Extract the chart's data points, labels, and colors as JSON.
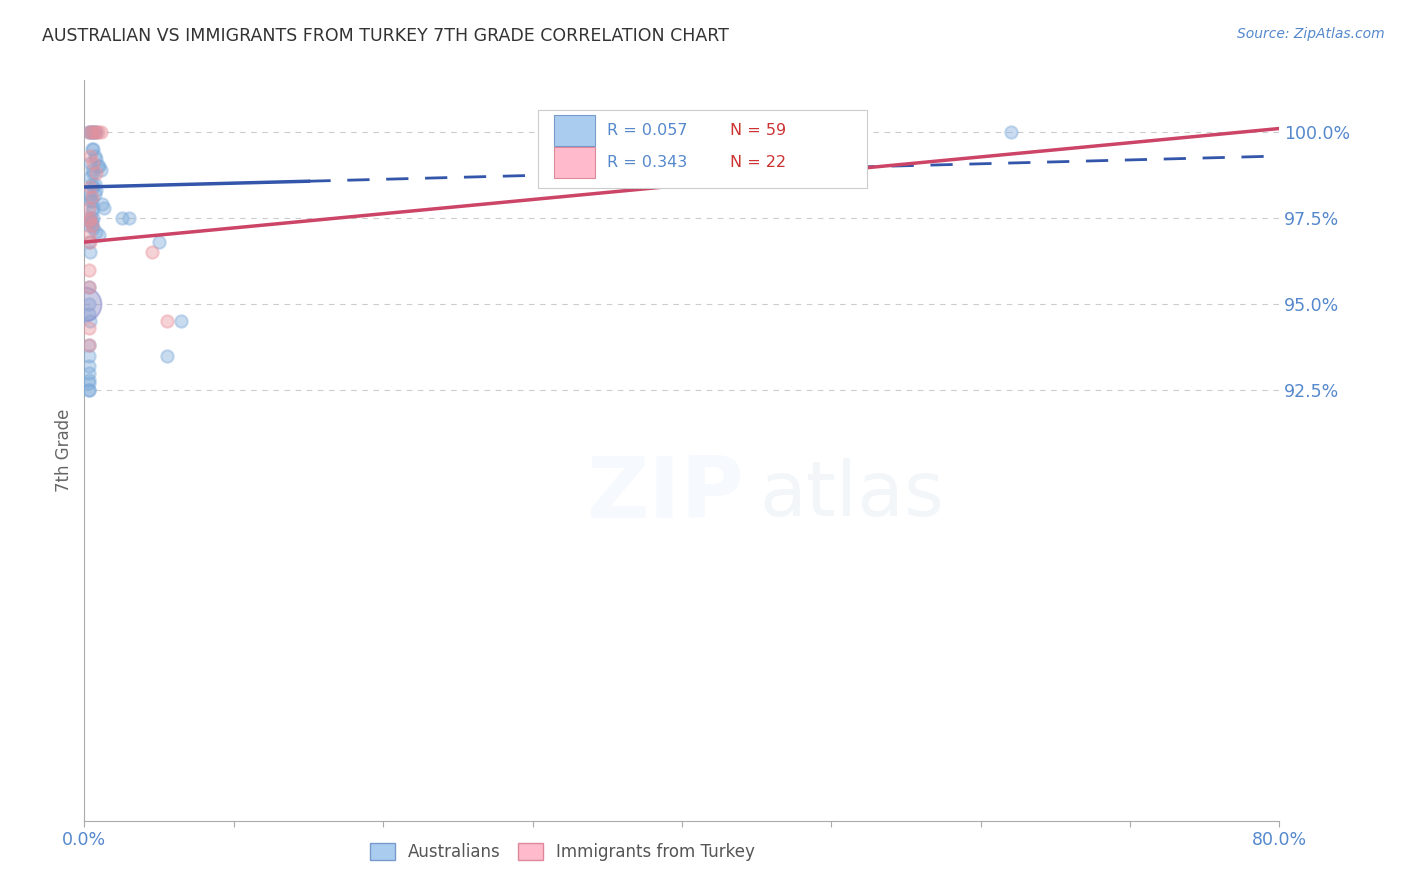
{
  "title": "AUSTRALIAN VS IMMIGRANTS FROM TURKEY 7TH GRADE CORRELATION CHART",
  "source": "Source: ZipAtlas.com",
  "ylabel": "7th Grade",
  "xmin": 0.0,
  "xmax": 80.0,
  "ymin": 80.0,
  "ymax": 101.5,
  "ytick_values": [
    92.5,
    95.0,
    97.5,
    100.0
  ],
  "yticklabels": [
    "92.5%",
    "95.0%",
    "97.5%",
    "100.0%"
  ],
  "blue_R": 0.057,
  "blue_N": 59,
  "pink_R": 0.343,
  "pink_N": 22,
  "legend_label_blue": "Australians",
  "legend_label_pink": "Immigrants from Turkey",
  "blue_color": "#7aa8d8",
  "pink_color": "#e8909a",
  "blue_line_color": "#3355aa",
  "pink_line_color": "#cc4466",
  "blue_scatter_x": [
    0.3,
    0.4,
    0.5,
    0.6,
    0.7,
    0.8,
    0.5,
    0.6,
    0.7,
    0.8,
    0.9,
    1.0,
    1.1,
    0.4,
    0.5,
    0.6,
    0.7,
    0.8,
    0.4,
    0.5,
    0.6,
    0.7,
    0.4,
    0.5,
    0.6,
    1.2,
    1.3,
    0.3,
    0.4,
    0.5,
    0.6,
    0.5,
    0.4,
    0.3,
    0.6,
    0.8,
    1.0,
    0.4,
    0.5,
    2.5,
    0.3,
    0.4,
    0.3,
    3.0,
    5.0,
    0.3,
    0.3,
    0.4,
    6.5,
    0.3,
    5.5,
    0.3,
    0.3,
    0.3,
    0.3,
    0.3,
    0.3,
    0.3,
    62.0
  ],
  "blue_scatter_y": [
    100.0,
    100.0,
    100.0,
    100.0,
    100.0,
    100.0,
    99.5,
    99.5,
    99.3,
    99.2,
    99.0,
    99.0,
    98.9,
    99.1,
    98.9,
    98.8,
    98.5,
    98.3,
    98.7,
    98.5,
    98.4,
    98.2,
    98.1,
    98.0,
    97.8,
    97.9,
    97.8,
    98.2,
    98.0,
    97.7,
    97.5,
    97.4,
    97.4,
    97.3,
    97.2,
    97.1,
    97.0,
    97.5,
    97.3,
    97.5,
    96.8,
    96.5,
    95.5,
    97.5,
    96.8,
    95.0,
    94.7,
    94.5,
    94.5,
    93.8,
    93.5,
    93.5,
    93.2,
    93.0,
    92.8,
    92.7,
    92.5,
    92.5,
    100.0
  ],
  "blue_scatter_s": [
    80,
    80,
    80,
    80,
    80,
    80,
    80,
    80,
    80,
    80,
    80,
    80,
    80,
    80,
    80,
    80,
    80,
    80,
    80,
    80,
    80,
    80,
    80,
    80,
    80,
    80,
    80,
    80,
    80,
    80,
    80,
    80,
    80,
    80,
    80,
    80,
    80,
    80,
    80,
    80,
    80,
    80,
    80,
    80,
    80,
    80,
    80,
    80,
    80,
    80,
    80,
    80,
    80,
    80,
    80,
    80,
    80,
    80,
    80
  ],
  "blue_large_x": [
    0.0
  ],
  "blue_large_y": [
    95.0
  ],
  "blue_large_s": [
    600
  ],
  "pink_scatter_x": [
    0.3,
    0.5,
    0.7,
    0.9,
    1.1,
    0.4,
    0.6,
    0.8,
    0.4,
    0.5,
    0.3,
    0.4,
    0.5,
    0.3,
    0.4,
    0.3,
    4.5,
    5.5,
    0.3,
    0.3,
    0.3,
    0.3
  ],
  "pink_scatter_y": [
    100.0,
    100.0,
    100.0,
    100.0,
    100.0,
    99.3,
    99.1,
    98.8,
    98.4,
    98.1,
    97.8,
    97.5,
    97.3,
    97.0,
    96.8,
    97.4,
    96.5,
    94.5,
    96.0,
    95.5,
    94.3,
    93.8
  ],
  "pink_scatter_s": [
    80,
    80,
    80,
    80,
    80,
    80,
    80,
    80,
    80,
    80,
    80,
    80,
    80,
    80,
    80,
    80,
    80,
    80,
    80,
    80,
    80,
    80
  ],
  "blue_line_x0": 0.0,
  "blue_line_y0": 98.4,
  "blue_line_x1": 80.0,
  "blue_line_y1": 99.3,
  "blue_solid_x1": 15.0,
  "pink_line_x0": 0.0,
  "pink_line_y0": 96.8,
  "pink_line_x1": 80.0,
  "pink_line_y1": 100.1,
  "watermark_zip": "ZIP",
  "watermark_atlas": "atlas",
  "grid_color": "#cccccc",
  "title_color": "#333333",
  "axis_label_color": "#5588cc",
  "spine_color": "#aaaaaa"
}
